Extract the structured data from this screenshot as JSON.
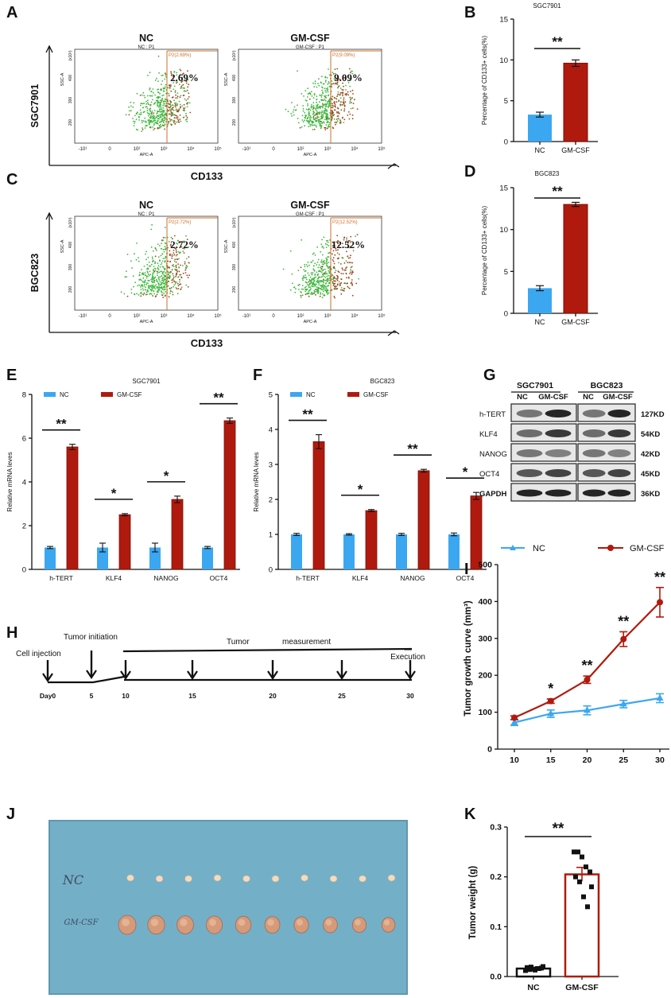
{
  "colors": {
    "nc": "#3ba7f0",
    "gm": "#b01a0e",
    "flow_green": "#3cb83c",
    "flow_brown": "#a0421c",
    "tray": "#74afc8",
    "gate": "#c8702c"
  },
  "panel_labels": {
    "A": "A",
    "B": "B",
    "C": "C",
    "D": "D",
    "E": "E",
    "F": "F",
    "G": "G",
    "H": "H",
    "I": "I",
    "J": "J",
    "K": "K"
  },
  "flow": {
    "xlabel": "CD133",
    "tick_x": [
      "-10¹",
      "0",
      "10²",
      "10³",
      "10⁴",
      "10⁵"
    ],
    "tick_y": [
      "(x10³)",
      "400",
      "300",
      "200"
    ],
    "ssc": "SSC-A",
    "apc": "APC-A",
    "rows": [
      {
        "cell": "SGC7901",
        "plots": [
          {
            "title": "NC",
            "sub": "NC : P1",
            "gate": "P2(2.69%)",
            "pct": "2.69%"
          },
          {
            "title": "GM-CSF",
            "sub": "GM-CSF : P1",
            "gate": "P2(9.09%)",
            "pct": "9.09%"
          }
        ]
      },
      {
        "cell": "BGC823",
        "plots": [
          {
            "title": "NC",
            "sub": "NC : P1",
            "gate": "P2(2.72%)",
            "pct": "2.72%"
          },
          {
            "title": "GM-CSF",
            "sub": "GM-CSF : P1",
            "gate": "P2(12.52%)",
            "pct": "12.52%"
          }
        ]
      }
    ]
  },
  "chart_data": [
    {
      "id": "B",
      "type": "bar",
      "title": "SGC7901",
      "ylabel": "Percentage of CD133+ cells(%)",
      "categories": [
        "NC",
        "GM-CSF"
      ],
      "values": [
        3.3,
        9.6
      ],
      "errors": [
        0.3,
        0.4
      ],
      "ylim": [
        0,
        15
      ],
      "yticks": [
        0,
        5,
        10,
        15
      ],
      "significance": "**"
    },
    {
      "id": "D",
      "type": "bar",
      "title": "BGC823",
      "ylabel": "Percentage of CD133+ cells(%)",
      "categories": [
        "NC",
        "GM-CSF"
      ],
      "values": [
        3.0,
        13.0
      ],
      "errors": [
        0.3,
        0.25
      ],
      "ylim": [
        0,
        15
      ],
      "yticks": [
        0,
        5,
        10,
        15
      ],
      "significance": "**"
    },
    {
      "id": "E",
      "type": "bar",
      "title": "SGC7901",
      "ylabel": "Relative mRNA leves",
      "categories": [
        "h-TERT",
        "KLF4",
        "NANOG",
        "OCT4"
      ],
      "ylim": [
        0,
        8
      ],
      "yticks": [
        0,
        2,
        4,
        6,
        8
      ],
      "series": [
        {
          "name": "NC",
          "values": [
            1.0,
            1.0,
            1.0,
            1.0
          ],
          "errors": [
            0.05,
            0.2,
            0.2,
            0.05
          ]
        },
        {
          "name": "GM-CSF",
          "values": [
            5.6,
            2.5,
            3.2,
            6.8
          ],
          "errors": [
            0.12,
            0.05,
            0.15,
            0.12
          ]
        }
      ],
      "significance": [
        "**",
        "*",
        "*",
        "**"
      ]
    },
    {
      "id": "F",
      "type": "bar",
      "title": "BGC823",
      "ylabel": "Relative mRNA leves",
      "categories": [
        "h-TERT",
        "KLF4",
        "NANOG",
        "OCT4"
      ],
      "ylim": [
        0,
        5
      ],
      "yticks": [
        0,
        1,
        2,
        3,
        4,
        5
      ],
      "series": [
        {
          "name": "NC",
          "values": [
            1.0,
            1.0,
            1.0,
            1.0
          ],
          "errors": [
            0.03,
            0.02,
            0.03,
            0.04
          ]
        },
        {
          "name": "GM-CSF",
          "values": [
            3.65,
            1.68,
            2.82,
            2.1
          ],
          "errors": [
            0.2,
            0.03,
            0.04,
            0.1
          ]
        }
      ],
      "significance": [
        "**",
        "*",
        "**",
        "*"
      ]
    },
    {
      "id": "I",
      "type": "line",
      "ylabel": "Tumor growth curve (mm³)",
      "x": [
        10,
        15,
        20,
        25,
        30
      ],
      "ylim": [
        0,
        500
      ],
      "yticks": [
        0,
        100,
        200,
        300,
        400,
        500
      ],
      "series": [
        {
          "name": "NC",
          "values": [
            72,
            96,
            105,
            122,
            138
          ],
          "errors": [
            8,
            10,
            12,
            10,
            12
          ]
        },
        {
          "name": "GM-CSF",
          "values": [
            85,
            130,
            188,
            298,
            398
          ],
          "errors": [
            5,
            6,
            10,
            20,
            40
          ]
        }
      ],
      "significance": [
        "",
        "*",
        "**",
        "**",
        "**"
      ]
    },
    {
      "id": "K",
      "type": "scatter",
      "ylabel": "Tumor weight (g)",
      "categories": [
        "NC",
        "GM-CSF"
      ],
      "ylim": [
        0,
        0.3
      ],
      "yticks": [
        "0.0",
        "0.1",
        "0.2",
        "0.3"
      ],
      "means": [
        0.016,
        0.205
      ],
      "sem": [
        0.002,
        0.014
      ],
      "points": [
        [
          0.012,
          0.014,
          0.015,
          0.016,
          0.017,
          0.018,
          0.019,
          0.013,
          0.016,
          0.02
        ],
        [
          0.25,
          0.25,
          0.24,
          0.22,
          0.21,
          0.2,
          0.19,
          0.16,
          0.14,
          0.18
        ]
      ],
      "significance": "**"
    }
  ],
  "western": {
    "groups": [
      "SGC7901",
      "BGC823"
    ],
    "lanes": [
      "NC",
      "GM-CSF",
      "NC",
      "GM-CSF"
    ],
    "proteins": [
      "h-TERT",
      "KLF4",
      "NANOG",
      "OCT4",
      "GAPDH"
    ],
    "sizes": [
      "127KD",
      "54KD",
      "42KD",
      "45KD",
      "36KD"
    ]
  },
  "timeline": {
    "days": [
      "Day0",
      "5",
      "10",
      "15",
      "20",
      "25",
      "30"
    ],
    "labels": {
      "injection": "Cell injection",
      "initiation": "Tumor  initiation",
      "measurement_a": "Tumor",
      "measurement_b": "measurement",
      "execution": "Execution"
    }
  },
  "photo": {
    "nc_label": "NC",
    "gm_label": "GM-CSF"
  }
}
